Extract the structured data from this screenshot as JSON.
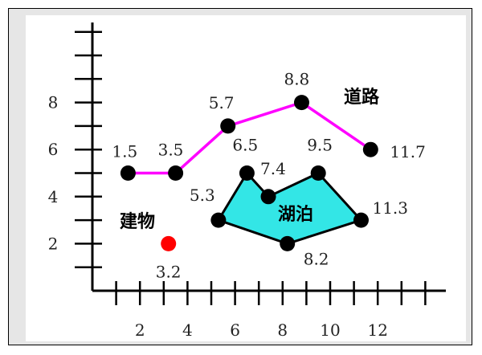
{
  "chart_data": {
    "type": "diagram",
    "x_ticks": [
      "2",
      "4",
      "6",
      "8",
      "10",
      "12"
    ],
    "y_ticks": [
      "2",
      "4",
      "6",
      "8"
    ],
    "road": {
      "label": "道路",
      "color": "#ff00ff",
      "points": [
        {
          "x": 1.5,
          "y": 5,
          "label": "1.5"
        },
        {
          "x": 3.5,
          "y": 5,
          "label": "3.5"
        },
        {
          "x": 5.7,
          "y": 7,
          "label": "5.7"
        },
        {
          "x": 8.8,
          "y": 8,
          "label": "8.8"
        },
        {
          "x": 11.7,
          "y": 6,
          "label": "11.7"
        }
      ]
    },
    "lake": {
      "label": "湖泊",
      "fill": "#33e6e6",
      "points": [
        {
          "x": 5.3,
          "y": 3,
          "label": "5.3"
        },
        {
          "x": 6.5,
          "y": 5,
          "label": "6.5"
        },
        {
          "x": 7.4,
          "y": 4,
          "label": "7.4"
        },
        {
          "x": 9.5,
          "y": 5,
          "label": "9.5"
        },
        {
          "x": 11.3,
          "y": 3,
          "label": "11.3"
        },
        {
          "x": 8.2,
          "y": 2,
          "label": "8.2"
        }
      ]
    },
    "building": {
      "label": "建物",
      "color": "#ff0000",
      "point": {
        "x": 3.2,
        "y": 2,
        "label": "3.2"
      }
    }
  }
}
